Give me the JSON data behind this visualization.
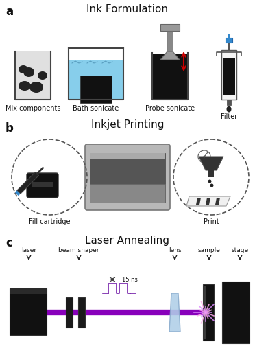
{
  "panel_a_title": "Ink Formulation",
  "panel_b_title": "Inkjet Printing",
  "panel_c_title": "Laser Annealing",
  "panel_a_labels": [
    "Mix components",
    "Bath sonicate",
    "Probe sonicate",
    "Filter"
  ],
  "panel_b_labels": [
    "Fill cartridge",
    "Print"
  ],
  "panel_c_labels": [
    "laser",
    "beam shaper",
    "lens",
    "sample",
    "stage"
  ],
  "panel_c_annotation": "15 ns",
  "background_color": "#ffffff",
  "label_a": "a",
  "label_b": "b",
  "label_c": "c",
  "gray_dark": "#1a1a1a",
  "gray_med": "#888888",
  "blue_light": "#a8d8e8",
  "blue_water": "#87ceeb",
  "purple_beam": "#8800bb",
  "red": "#cc0000",
  "blue_lens": "#b0cfe8",
  "syringe_blue": "#3388cc"
}
